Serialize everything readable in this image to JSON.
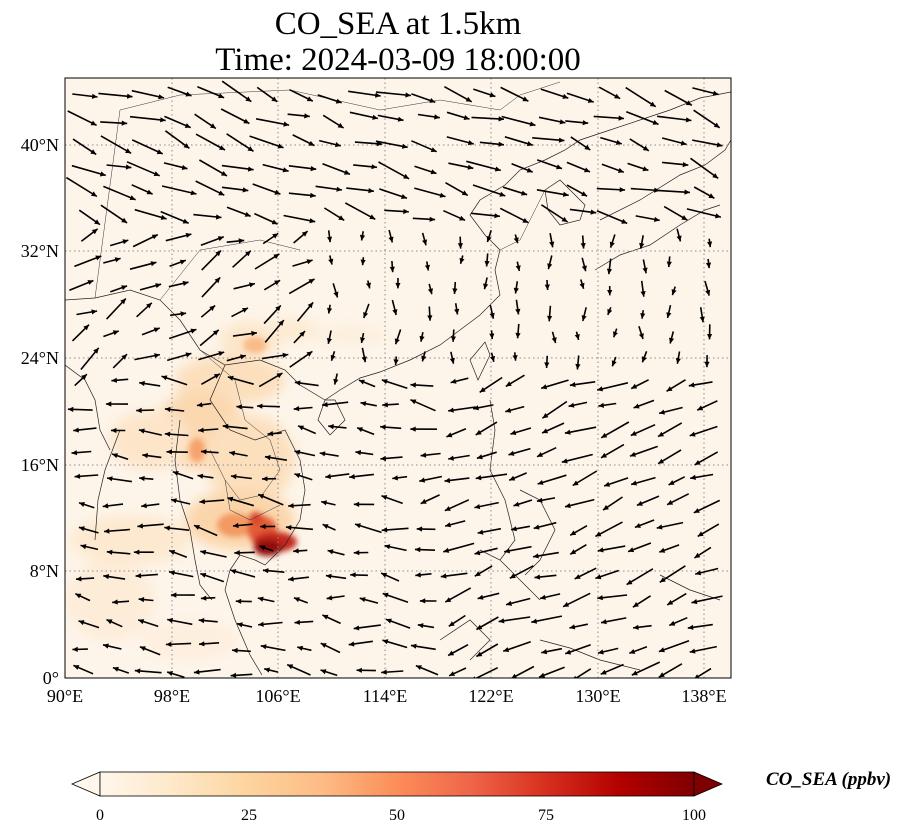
{
  "title": {
    "line1": "CO_SEA at 1.5km",
    "line2": "Time: 2024-03-09 18:00:00"
  },
  "map": {
    "projection": "PlateCarree",
    "lon_range": [
      90,
      140
    ],
    "lat_range": [
      0,
      45
    ],
    "gridlines": "dotted grey",
    "x_ticks": [
      "90°E",
      "98°E",
      "106°E",
      "114°E",
      "122°E",
      "130°E",
      "138°E"
    ],
    "y_ticks": [
      "0°",
      "8°N",
      "16°N",
      "24°N",
      "32°N",
      "40°N"
    ],
    "field": "CO_SEA concentration (filled)",
    "vectors": "wind arrows",
    "colormap": "OrRd"
  },
  "colorbar": {
    "label": "CO_SEA (ppbv)",
    "ticks": [
      "0",
      "25",
      "50",
      "75",
      "100"
    ],
    "range": [
      0,
      100
    ],
    "extend": "both",
    "colors": [
      "#fff7ec",
      "#fee8c8",
      "#fdd49e",
      "#fdbb84",
      "#fc8d59",
      "#ef6548",
      "#d7301f",
      "#b30000",
      "#7f0000"
    ]
  }
}
